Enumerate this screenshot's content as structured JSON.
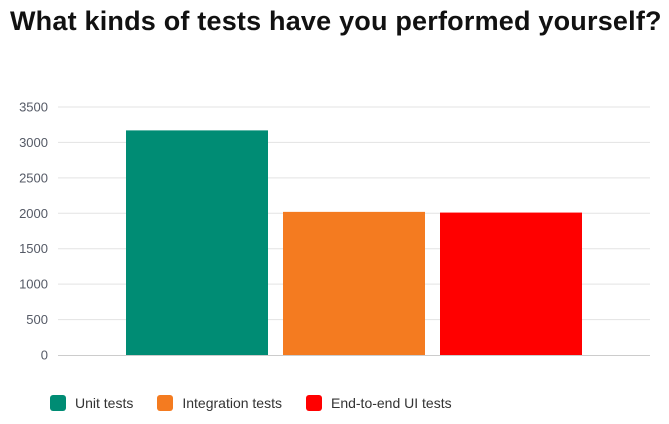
{
  "chart_data": {
    "type": "bar",
    "title": "What kinds of tests have you performed yourself?",
    "xlabel": "",
    "ylabel": "",
    "ylim": [
      0,
      3500
    ],
    "yticks": [
      0,
      500,
      1000,
      1500,
      2000,
      2500,
      3000,
      3500
    ],
    "grid": true,
    "legend_position": "bottom-left",
    "series": [
      {
        "name": "Unit tests",
        "value": 3170,
        "color": "#008c74"
      },
      {
        "name": "Integration tests",
        "value": 2020,
        "color": "#f47b20"
      },
      {
        "name": "End-to-end UI tests",
        "value": 2010,
        "color": "#ff0000"
      }
    ]
  }
}
